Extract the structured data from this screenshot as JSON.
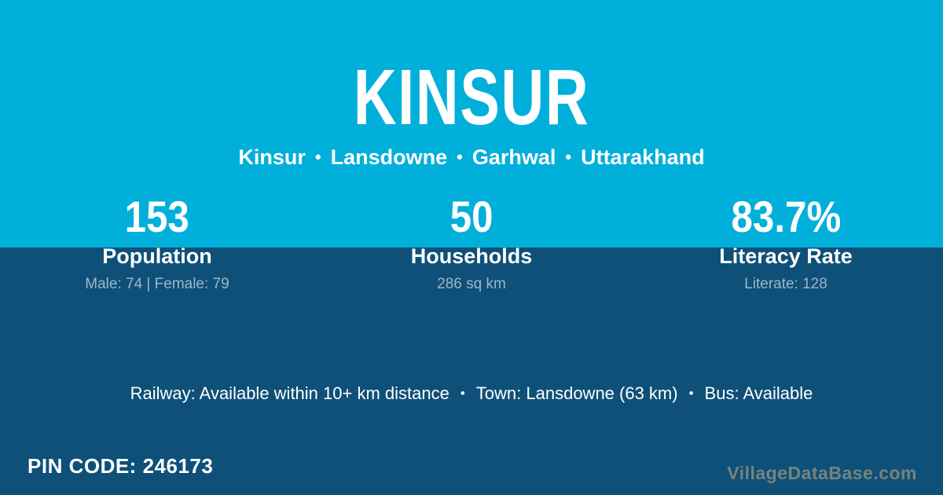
{
  "colors": {
    "top_background": "#00AFDA",
    "bottom_background": "#0E5078",
    "text_primary": "#FFFFFF",
    "text_muted": "#9EB6C6",
    "watermark_text": "#75837F"
  },
  "header": {
    "title": "KINSUR",
    "separator": "•",
    "location": {
      "village": "Kinsur",
      "block": "Lansdowne",
      "district": "Garhwal",
      "state": "Uttarakhand"
    }
  },
  "stats": [
    {
      "value": "153",
      "label": "Population",
      "detail": "Male: 74 | Female: 79"
    },
    {
      "value": "50",
      "label": "Households",
      "detail": "286 sq km"
    },
    {
      "value": "83.7%",
      "label": "Literacy Rate",
      "detail": "Literate: 128"
    }
  ],
  "amenities": {
    "separator": "•",
    "items": [
      "Railway: Available within 10+ km distance",
      "Town: Lansdowne (63 km)",
      "Bus: Available"
    ]
  },
  "footer": {
    "pin_label": "PIN CODE:",
    "pin_value": "246173",
    "watermark": "VillageDataBase.com"
  }
}
